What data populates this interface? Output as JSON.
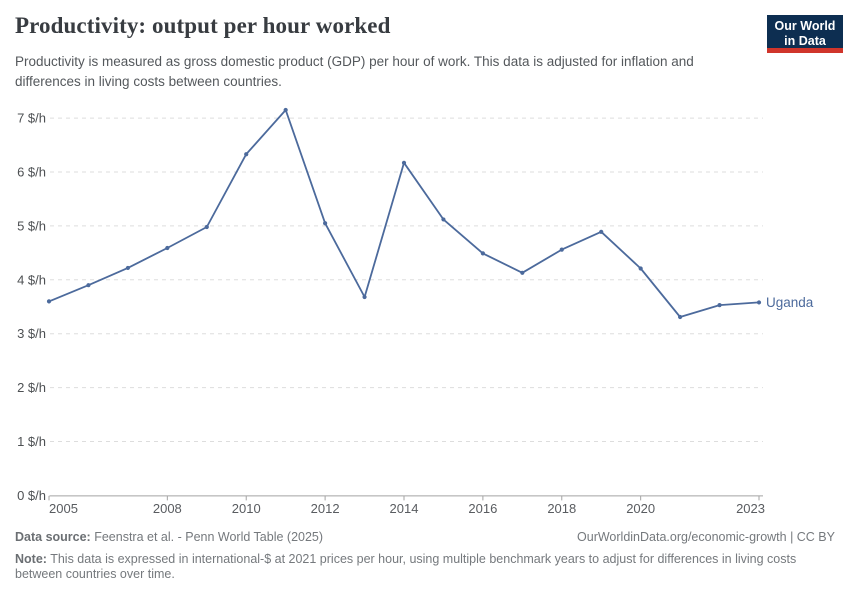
{
  "header": {
    "title": "Productivity: output per hour worked",
    "subtitle": "Productivity is measured as gross domestic product (GDP) per hour of work. This data is adjusted for inflation and differences in living costs between countries.",
    "logo": {
      "line1": "Our World",
      "line2": "in Data"
    }
  },
  "chart_data": {
    "type": "line",
    "title": "Productivity: output per hour worked",
    "xlabel": "",
    "ylabel": "",
    "unit": "$/h",
    "x": [
      2005,
      2006,
      2007,
      2008,
      2009,
      2010,
      2011,
      2012,
      2013,
      2014,
      2015,
      2016,
      2017,
      2018,
      2019,
      2020,
      2021,
      2022,
      2023
    ],
    "series": [
      {
        "name": "Uganda",
        "values": [
          3.6,
          3.9,
          4.22,
          4.59,
          4.98,
          6.33,
          7.15,
          5.05,
          3.68,
          6.17,
          5.12,
          4.49,
          4.13,
          4.56,
          4.89,
          4.21,
          3.31,
          3.53,
          3.58
        ]
      }
    ],
    "xlim": [
      2005,
      2023
    ],
    "ylim": [
      0,
      7.4
    ],
    "y_ticks": [
      0,
      1,
      2,
      3,
      4,
      5,
      6,
      7
    ],
    "y_tick_suffix": " $/h",
    "x_ticks": [
      2005,
      2008,
      2010,
      2012,
      2014,
      2016,
      2018,
      2020,
      2023
    ],
    "grid": "horizontal-dashed",
    "legend_position": "end-of-line",
    "end_label": "Uganda"
  },
  "footer": {
    "data_source_label": "Data source:",
    "data_source": "Feenstra et al. - Penn World Table (2025)",
    "attribution": "OurWorldinData.org/economic-growth | CC BY",
    "note_label": "Note:",
    "note": "This data is expressed in international-$ at 2021 prices per hour, using multiple benchmark years to adjust for differences in living costs between countries over time."
  },
  "colors": {
    "line": "#4C6A9C",
    "gridline": "#dddddd",
    "axis": "#a3a3a3",
    "y_tick_label": "#4d5053",
    "x_tick_label": "#595c60",
    "logo_bg": "#0d2e51",
    "logo_accent": "#d0352b"
  }
}
